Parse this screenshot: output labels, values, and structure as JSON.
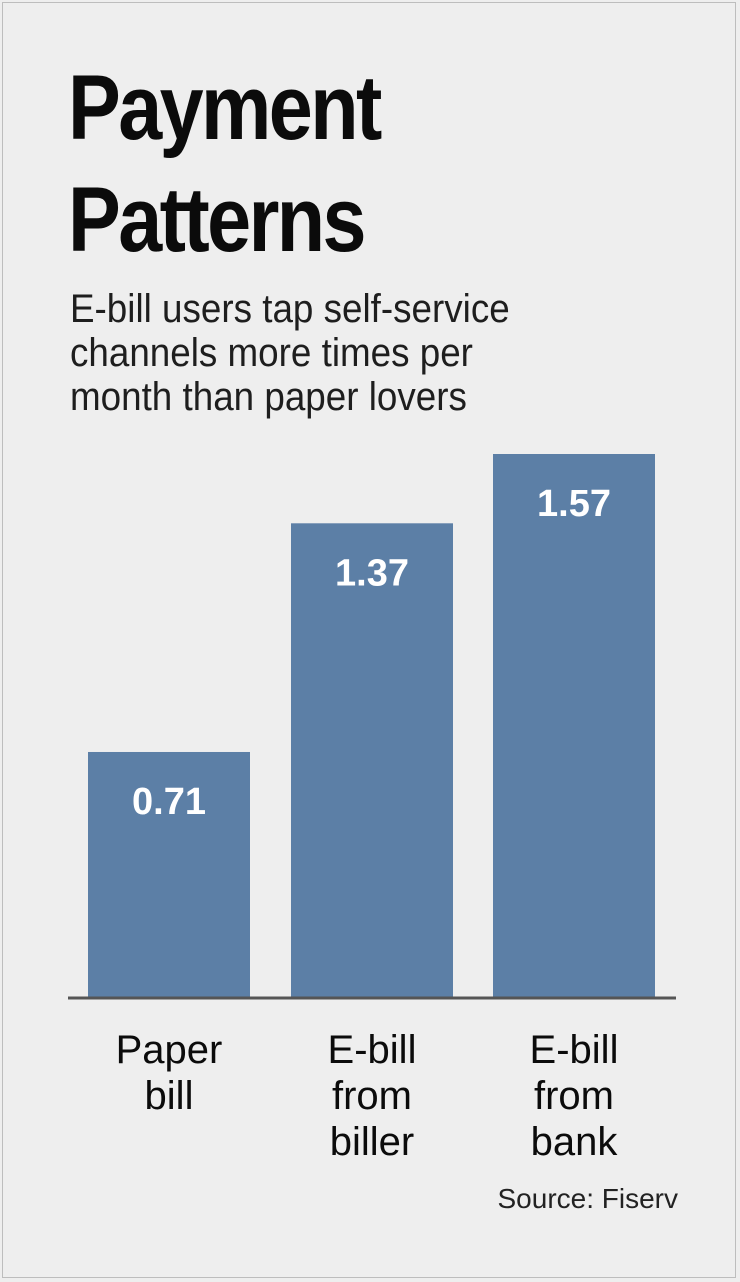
{
  "header": {
    "title_lines": [
      "Payment",
      "Patterns"
    ],
    "subtitle_lines": [
      "E-bill users tap self-service",
      "channels more times per",
      "month than paper lovers"
    ]
  },
  "chart_data": {
    "type": "bar",
    "title": "Payment Patterns",
    "subtitle": "E-bill users tap self-service channels more times per month than paper lovers",
    "categories": [
      "Paper bill",
      "E-bill from biller",
      "E-bill from bank"
    ],
    "category_lines": [
      [
        "Paper",
        "bill"
      ],
      [
        "E-bill",
        "from",
        "biller"
      ],
      [
        "E-bill",
        "from",
        "bank"
      ]
    ],
    "values": [
      0.71,
      1.37,
      1.57
    ],
    "value_labels": [
      "0.71",
      "1.37",
      "1.57"
    ],
    "xlabel": "",
    "ylabel": "",
    "ylim": [
      0,
      1.57
    ],
    "grid": false,
    "legend": "none",
    "bar_color": "#5c7fa6",
    "value_label_color": "#ffffff"
  },
  "footer": {
    "source": "Source: Fiserv"
  }
}
